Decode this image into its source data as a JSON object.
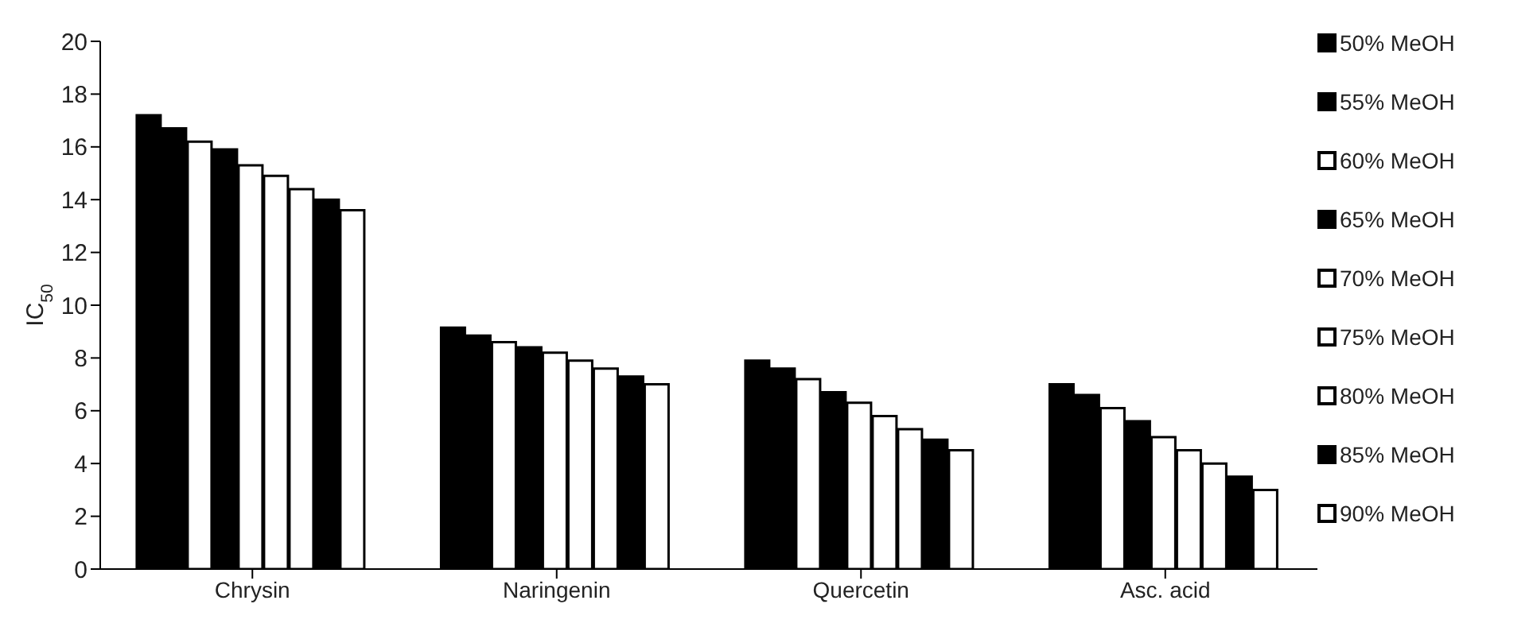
{
  "chart_data": {
    "type": "bar",
    "ylabel": "IC$_{50}$",
    "categories": [
      "Chrysin",
      "Naringenin",
      "Quercetin",
      "Asc. acid"
    ],
    "series": [
      {
        "name": "50% MeOH",
        "color": "#000000",
        "values": [
          17.2,
          9.15,
          7.9,
          7.0
        ]
      },
      {
        "name": "55% MeOH",
        "color": "#000000",
        "values": [
          16.7,
          8.85,
          7.6,
          6.6
        ]
      },
      {
        "name": "60% MeOH",
        "color": "#ffffff",
        "values": [
          16.2,
          8.6,
          7.2,
          6.1
        ]
      },
      {
        "name": "65% MeOH",
        "color": "#000000",
        "values": [
          15.9,
          8.4,
          6.7,
          5.6
        ]
      },
      {
        "name": "70% MeOH",
        "color": "#ffffff",
        "values": [
          15.3,
          8.2,
          6.3,
          5.0
        ]
      },
      {
        "name": "75% MeOH",
        "color": "#ffffff",
        "values": [
          14.9,
          7.9,
          5.8,
          4.5
        ]
      },
      {
        "name": "80% MeOH",
        "color": "#ffffff",
        "values": [
          14.4,
          7.6,
          5.3,
          4.0
        ]
      },
      {
        "name": "85% MeOH",
        "color": "#000000",
        "values": [
          14.0,
          7.3,
          4.9,
          3.5
        ]
      },
      {
        "name": "90% MeOH",
        "color": "#ffffff",
        "values": [
          13.6,
          7.0,
          4.5,
          3.0
        ]
      }
    ],
    "ylim": [
      0,
      20
    ],
    "yticks": [
      0,
      2,
      4,
      6,
      8,
      10,
      12,
      14,
      16,
      18,
      20
    ],
    "grid": false,
    "legend": "right"
  }
}
